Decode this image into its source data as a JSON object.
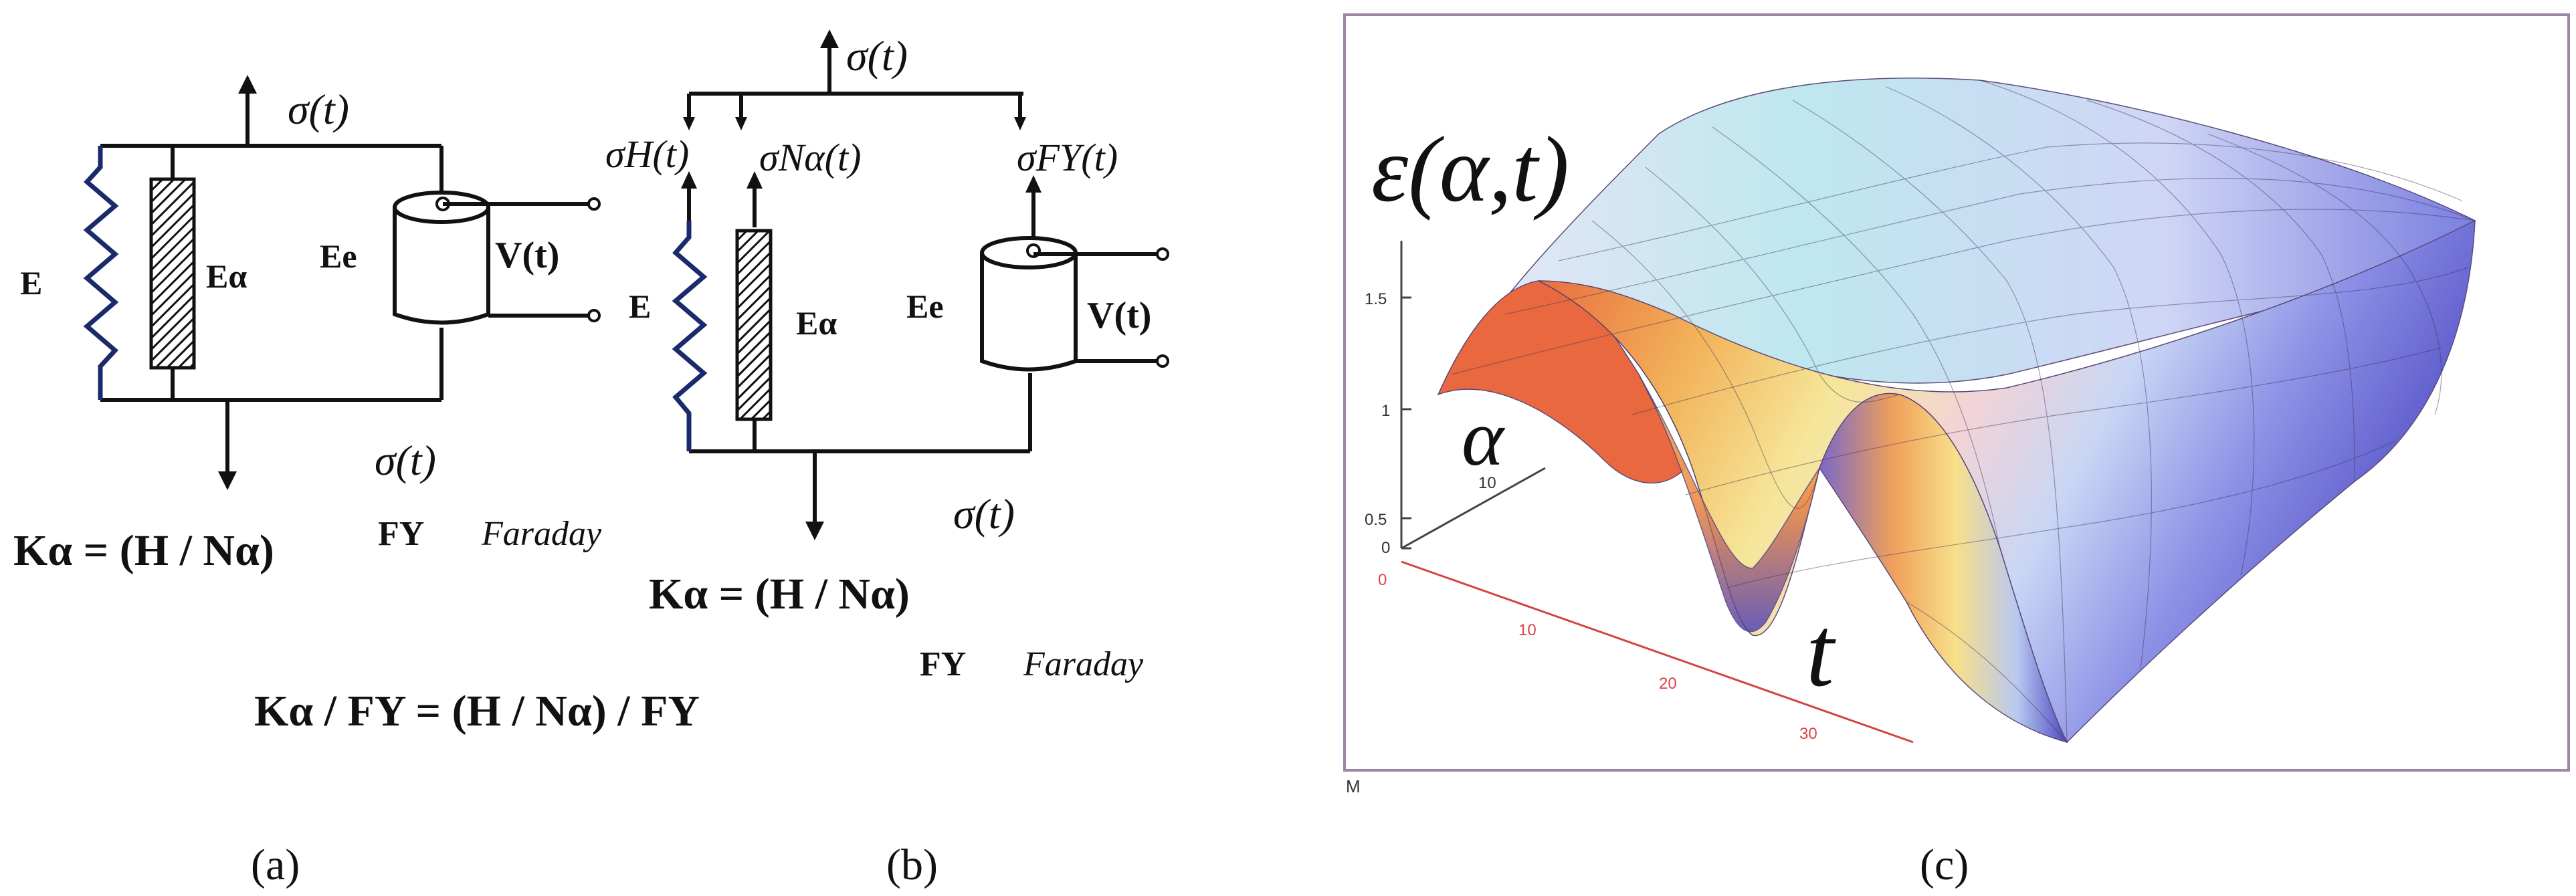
{
  "panel_a": {
    "caption": "(a)",
    "sigma_top": "σ(t)",
    "sigma_bottom": "σ(t)",
    "spring_label": "E",
    "dashpot_label": "Eα",
    "cell_label": "Ee",
    "voltage_label": "V(t)",
    "formula": "Kα = (H / Nα)",
    "fy_text": "FY",
    "faraday_text": "Faraday",
    "formula_ratio": "Kα / FY = (H / Nα) / FY"
  },
  "panel_b": {
    "caption": "(b)",
    "sigma_top": "σ(t)",
    "sigma_h": "σH(t)",
    "sigma_n": "σNα(t)",
    "sigma_fy": "σFY(t)",
    "sigma_bottom": "σ(t)",
    "spring_label": "E",
    "dashpot_label": "Eα",
    "cell_label": "Ee",
    "voltage_label": "V(t)",
    "formula": "Kα = (H / Nα)",
    "fy_text": "FY",
    "faraday_text": "Faraday"
  },
  "panel_c": {
    "caption": "(c)",
    "surface_label": "ε(α,t)",
    "alpha_label": "α",
    "t_label": "t",
    "small_mark": "M",
    "z_ticks": [
      "1.5",
      "1",
      "0.5",
      "0"
    ],
    "alpha_ticks": [
      "10"
    ],
    "t_ticks": [
      "0",
      "10",
      "20",
      "30"
    ]
  },
  "colors": {
    "spring": "#1b2a6b",
    "frame": "#9c86a8",
    "axis_red": "#d44444"
  }
}
